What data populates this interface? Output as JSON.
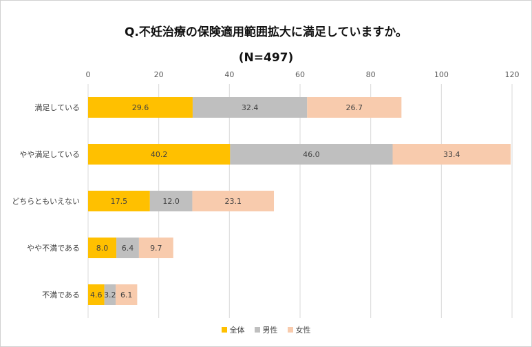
{
  "chart_data": {
    "type": "bar",
    "orientation": "horizontal",
    "stacked": true,
    "title": "Q.不妊治療の保険適用範囲拡大に満足していますか。",
    "subtitle": "(N=497)",
    "categories": [
      "満足している",
      "やや満足している",
      "どちらともいえない",
      "やや不満である",
      "不満である"
    ],
    "series": [
      {
        "name": "全体",
        "color": "#FFC000",
        "values": [
          29.6,
          40.2,
          17.5,
          8.0,
          4.6
        ],
        "labels": [
          "29.6",
          "40.2",
          "17.5",
          "8.0",
          "4.6"
        ]
      },
      {
        "name": "男性",
        "color": "#BFBFBF",
        "values": [
          32.4,
          46.0,
          12.0,
          6.4,
          3.2
        ],
        "labels": [
          "32.4",
          "46.0",
          "12.0",
          "6.4",
          "3.2"
        ]
      },
      {
        "name": "女性",
        "color": "#F8CBAD",
        "values": [
          26.7,
          33.4,
          23.1,
          9.7,
          6.1
        ],
        "labels": [
          "26.7",
          "33.4",
          "23.1",
          "9.7",
          "6.1"
        ]
      }
    ],
    "xlim": [
      0,
      120
    ],
    "ticks": [
      0,
      20,
      40,
      60,
      80,
      100,
      120
    ],
    "tick_labels": [
      "0",
      "20",
      "40",
      "60",
      "80",
      "100",
      "120"
    ],
    "grid": true,
    "legend_position": "bottom"
  }
}
